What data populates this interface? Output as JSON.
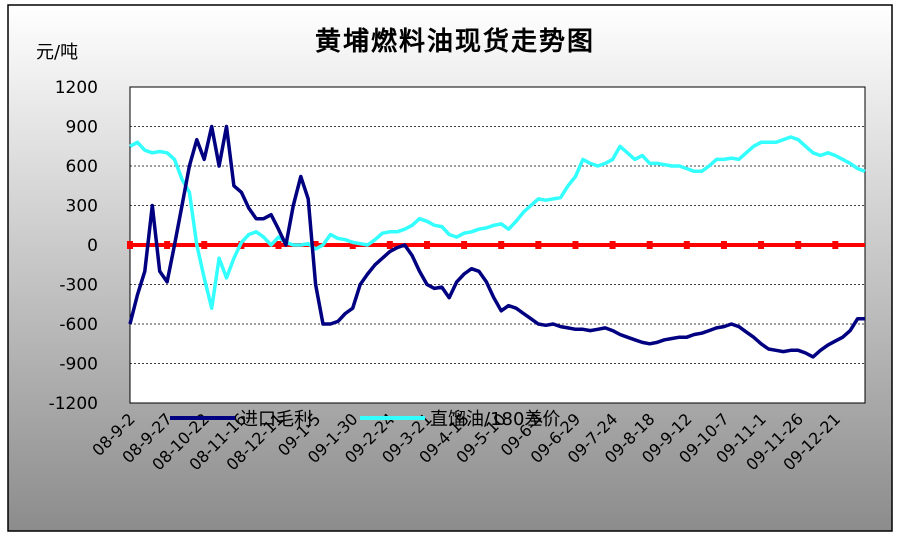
{
  "chart_data": {
    "type": "line",
    "title": "黄埔燃料油现货走势图",
    "y_axis_label": "元/吨",
    "categories": [
      "08-9-2",
      null,
      null,
      null,
      null,
      "08-9-27",
      null,
      null,
      null,
      null,
      "08-10-22",
      null,
      null,
      null,
      null,
      "08-11-16",
      null,
      null,
      null,
      null,
      "08-12-11",
      null,
      null,
      null,
      null,
      "09-1-5",
      null,
      null,
      null,
      null,
      "09-1-30",
      null,
      null,
      null,
      null,
      "09-2-24",
      null,
      null,
      null,
      null,
      "09-3-21",
      null,
      null,
      null,
      null,
      "09-4-15",
      null,
      null,
      null,
      null,
      "09-5-10",
      null,
      null,
      null,
      null,
      "09-6-4",
      null,
      null,
      null,
      null,
      "09-6-29",
      null,
      null,
      null,
      null,
      "09-7-24",
      null,
      null,
      null,
      null,
      "09-8-18",
      null,
      null,
      null,
      null,
      "09-9-12",
      null,
      null,
      null,
      null,
      "09-10-7",
      null,
      null,
      null,
      null,
      "09-11-1",
      null,
      null,
      null,
      null,
      "09-11-26",
      null,
      null,
      null,
      null,
      "09-12-21",
      null,
      null,
      null,
      null
    ],
    "series": [
      {
        "name": "进口毛利",
        "color": "#000080",
        "values": [
          -600,
          -380,
          -200,
          300,
          -200,
          -280,
          0,
          300,
          600,
          800,
          650,
          900,
          600,
          900,
          450,
          400,
          280,
          200,
          200,
          230,
          120,
          0,
          300,
          520,
          350,
          -300,
          -600,
          -600,
          -580,
          -520,
          -480,
          -300,
          -220,
          -150,
          -100,
          -50,
          -20,
          0,
          -80,
          -200,
          -300,
          -330,
          -320,
          -400,
          -280,
          -220,
          -180,
          -200,
          -280,
          -400,
          -500,
          -460,
          -480,
          -520,
          -560,
          -600,
          -610,
          -600,
          -620,
          -630,
          -640,
          -640,
          -650,
          -640,
          -630,
          -650,
          -680,
          -700,
          -720,
          -740,
          -750,
          -740,
          -720,
          -710,
          -700,
          -700,
          -680,
          -670,
          -650,
          -630,
          -620,
          -600,
          -620,
          -660,
          -700,
          -750,
          -790,
          -800,
          -810,
          -800,
          -800,
          -820,
          -850,
          -800,
          -760,
          -730,
          -700,
          -650,
          -560,
          -560
        ]
      },
      {
        "name": "直馏油/180差价",
        "color": "#33ffff",
        "values": [
          750,
          780,
          720,
          700,
          710,
          700,
          650,
          500,
          400,
          0,
          -250,
          -480,
          -100,
          -250,
          -100,
          20,
          80,
          100,
          60,
          0,
          60,
          20,
          0,
          0,
          10,
          -30,
          0,
          80,
          50,
          40,
          20,
          10,
          0,
          40,
          90,
          100,
          100,
          120,
          150,
          200,
          180,
          150,
          140,
          80,
          60,
          90,
          100,
          120,
          130,
          150,
          160,
          120,
          180,
          250,
          300,
          350,
          340,
          350,
          360,
          450,
          520,
          650,
          620,
          600,
          620,
          650,
          750,
          700,
          650,
          680,
          620,
          620,
          610,
          600,
          600,
          580,
          560,
          560,
          600,
          650,
          650,
          660,
          650,
          700,
          750,
          780,
          780,
          780,
          800,
          820,
          800,
          750,
          700,
          680,
          700,
          680,
          650,
          620,
          580,
          560
        ]
      },
      {
        "color": "#ff0000",
        "values": [
          0,
          0,
          0,
          0,
          0,
          0,
          0,
          0,
          0,
          0,
          0,
          0,
          0,
          0,
          0,
          0,
          0,
          0,
          0,
          0,
          0,
          0,
          0,
          0,
          0,
          0,
          0,
          0,
          0,
          0,
          0,
          0,
          0,
          0,
          0,
          0,
          0,
          0,
          0,
          0,
          0,
          0,
          0,
          0,
          0,
          0,
          0,
          0,
          0,
          0,
          0,
          0,
          0,
          0,
          0,
          0,
          0,
          0,
          0,
          0,
          0,
          0,
          0,
          0,
          0,
          0,
          0,
          0,
          0,
          0,
          0,
          0,
          0,
          0,
          0,
          0,
          0,
          0,
          0,
          0,
          0,
          0,
          0,
          0,
          0,
          0,
          0,
          0,
          0,
          0,
          0,
          0,
          0,
          0,
          0,
          0,
          0,
          0,
          0,
          0
        ]
      }
    ],
    "ylim": [
      -1200,
      1200
    ],
    "yticks": [
      -1200,
      -900,
      -600,
      -300,
      0,
      300,
      600,
      900,
      1200
    ],
    "grid": true,
    "legend": "bottom"
  }
}
